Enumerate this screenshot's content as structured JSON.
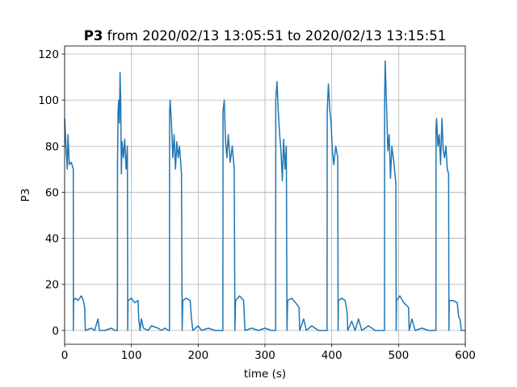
{
  "chart_data": {
    "type": "line",
    "title_bold": "P3",
    "title": "from 2020/02/13 13:05:51 to 2020/02/13 13:15:51",
    "x_label": "time (s)",
    "y_label": "P3",
    "xlim": [
      0,
      600
    ],
    "ylim": [
      -6,
      123.5
    ],
    "xticks": [
      0,
      100,
      200,
      300,
      400,
      500,
      600
    ],
    "yticks": [
      0,
      20,
      40,
      60,
      80,
      100,
      120
    ],
    "grid": true,
    "x": [
      0,
      2,
      4,
      5,
      7,
      10,
      13,
      13.1,
      13.5,
      16,
      20,
      25,
      28,
      30,
      31,
      40,
      45,
      50,
      52,
      60,
      70,
      75,
      78,
      79,
      79.2,
      80,
      81,
      82,
      83,
      84,
      85,
      86,
      88,
      90,
      92,
      94,
      94.5,
      95,
      100,
      105,
      110,
      111,
      113,
      115,
      118,
      125,
      130,
      140,
      145,
      150,
      156,
      157,
      157.2,
      158,
      160,
      162,
      164,
      166,
      168,
      170,
      172,
      175,
      176,
      177,
      182,
      188,
      190,
      192,
      200,
      205,
      215,
      225,
      236,
      237,
      237.2,
      239,
      241,
      243,
      245,
      248,
      251,
      254,
      255,
      256,
      262,
      268,
      270,
      280,
      290,
      300,
      310,
      315,
      316,
      316.2,
      318,
      320,
      322,
      324,
      326,
      328,
      330,
      332,
      333,
      334,
      340,
      346,
      351,
      352,
      358,
      362,
      370,
      380,
      392,
      393,
      393.2,
      395,
      397,
      399,
      401,
      403,
      406,
      409,
      409.5,
      410,
      415,
      420,
      423,
      424,
      430,
      435,
      440,
      445,
      455,
      465,
      478,
      479,
      479.2,
      480,
      482,
      484,
      486,
      488,
      490,
      493,
      496,
      496.5,
      497,
      502,
      508,
      515,
      516,
      520,
      525,
      535,
      545,
      555,
      556,
      556.2,
      557,
      559,
      561,
      563,
      565,
      567,
      569,
      571,
      573,
      575,
      575.5,
      576,
      582,
      588,
      590,
      592,
      594,
      600
    ],
    "series": [
      {
        "color": "#1f77b4",
        "values": [
          92,
          80,
          70,
          85,
          72,
          73,
          70,
          0,
          13,
          14,
          13,
          15,
          13,
          10,
          0,
          1,
          0,
          5,
          0,
          0,
          1,
          0,
          0,
          0,
          72,
          95,
          100,
          90,
          112,
          100,
          68,
          82,
          75,
          83,
          70,
          80,
          0,
          13,
          14,
          12,
          13,
          5,
          0,
          5,
          1,
          0,
          2,
          1,
          0,
          1,
          0,
          0,
          95,
          100,
          90,
          75,
          85,
          70,
          82,
          75,
          80,
          68,
          0,
          13,
          14,
          13,
          5,
          0,
          2,
          0,
          1,
          0,
          0,
          0,
          95,
          100,
          82,
          75,
          85,
          73,
          80,
          70,
          0,
          13,
          15,
          13,
          0,
          1,
          0,
          1,
          0,
          0,
          0,
          100,
          108,
          95,
          85,
          78,
          65,
          83,
          70,
          80,
          0,
          13,
          14,
          12,
          10,
          0,
          5,
          0,
          2,
          0,
          0,
          0,
          95,
          107,
          96,
          90,
          78,
          72,
          80,
          75,
          0,
          13,
          14,
          13,
          8,
          0,
          4,
          0,
          5,
          0,
          2,
          0,
          0,
          0,
          100,
          117,
          98,
          78,
          85,
          66,
          80,
          73,
          64,
          0,
          13,
          15,
          12,
          10,
          0,
          5,
          0,
          1,
          0,
          0,
          0,
          88,
          92,
          80,
          85,
          72,
          92,
          78,
          75,
          80,
          70,
          68,
          0,
          13,
          13,
          12,
          6,
          5,
          0,
          0
        ]
      }
    ]
  }
}
